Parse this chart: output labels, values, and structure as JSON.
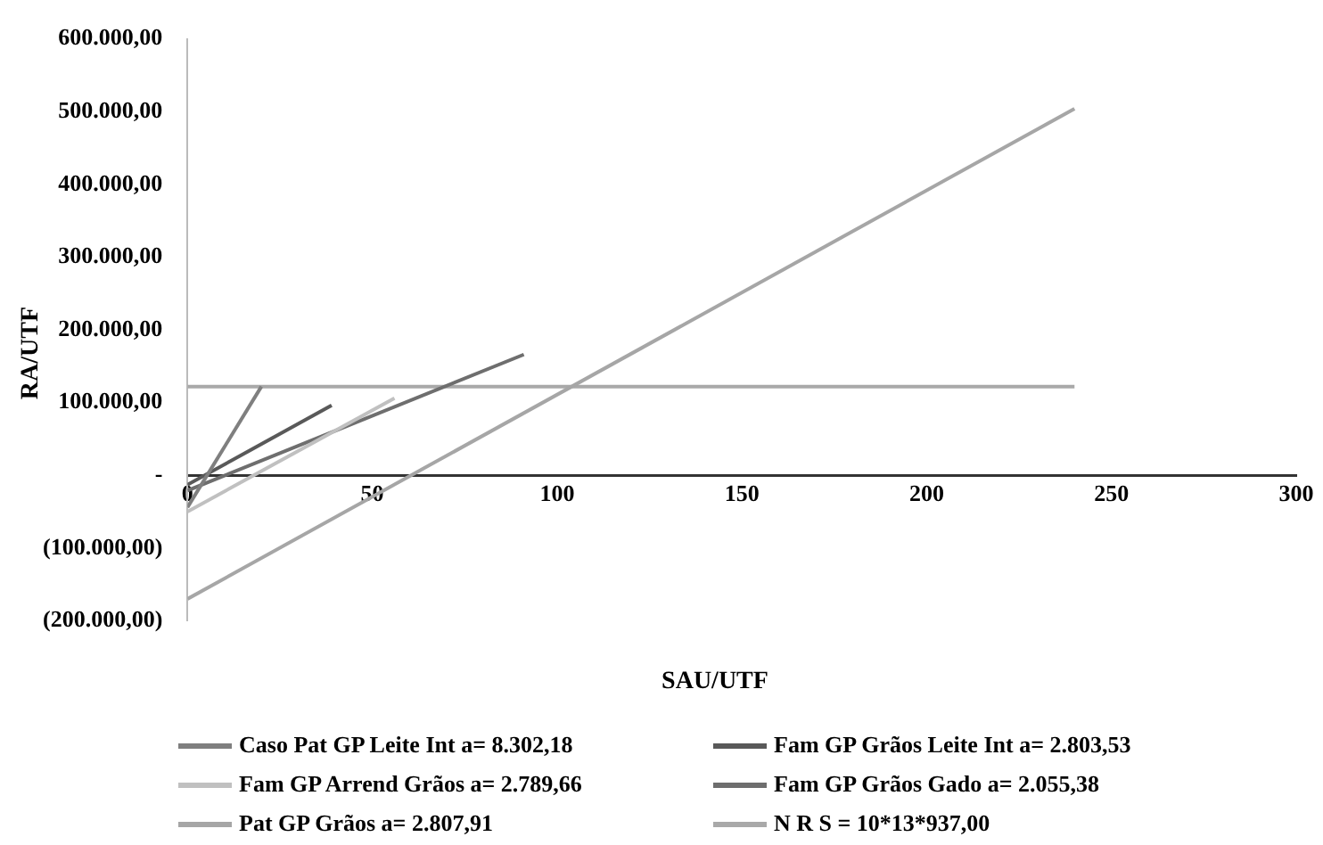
{
  "chart_data": {
    "type": "line",
    "xlabel": "SAU/UTF",
    "ylabel": "RA/UTF",
    "xlim": [
      0,
      300
    ],
    "xticks": [
      0,
      50,
      100,
      150,
      200,
      250,
      300
    ],
    "ylim": [
      -200000,
      600000
    ],
    "yticks": [
      {
        "value": -200000,
        "label": "(200.000,00)"
      },
      {
        "value": -100000,
        "label": "(100.000,00)"
      },
      {
        "value": 0,
        "label": "-"
      },
      {
        "value": 100000,
        "label": "100.000,00"
      },
      {
        "value": 200000,
        "label": "200.000,00"
      },
      {
        "value": 300000,
        "label": "300.000,00"
      },
      {
        "value": 400000,
        "label": "400.000,00"
      },
      {
        "value": 500000,
        "label": "500.000,00"
      },
      {
        "value": 600000,
        "label": "600.000,00"
      }
    ],
    "grid": false,
    "legend": "bottom",
    "marker": "none",
    "line_style": "solid",
    "series": [
      {
        "name": "Caso Pat GP Leite Int a= 8.302,18",
        "color": "#7f7f7f",
        "x": [
          0,
          20
        ],
        "values": [
          -44000,
          122000
        ]
      },
      {
        "name": "Fam GP Grãos Leite Int a= 2.803,53",
        "color": "#595959",
        "x": [
          0,
          39
        ],
        "values": [
          -13000,
          96000
        ]
      },
      {
        "name": "Fam GP Arrend Grãos a= 2.789,66",
        "color": "#c0c0c0",
        "x": [
          0,
          56
        ],
        "values": [
          -50000,
          106000
        ]
      },
      {
        "name": "Fam GP Grãos Gado a= 2.055,38",
        "color": "#6e6e6e",
        "x": [
          0,
          91
        ],
        "values": [
          -21000,
          166000
        ]
      },
      {
        "name": "Pat GP Grãos a= 2.807,91",
        "color": "#a6a6a6",
        "x": [
          0,
          240
        ],
        "values": [
          -170000,
          504000
        ]
      },
      {
        "name": "N R S = 10*13*937,00",
        "color": "#a9a9a9",
        "x": [
          0,
          240
        ],
        "values": [
          121810,
          121810
        ]
      }
    ]
  }
}
